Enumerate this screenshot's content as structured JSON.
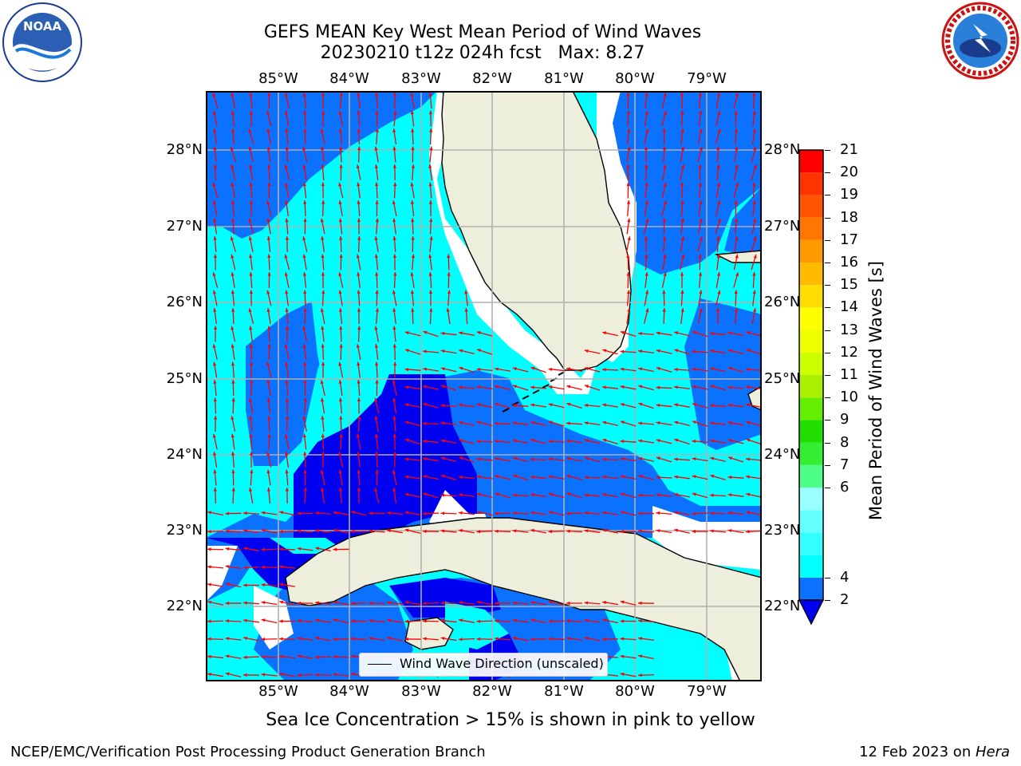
{
  "header": {
    "title_line1": "GEFS MEAN Key West Mean Period of Wind Waves",
    "title_line2": "20230210 t12z 024h fcst   Max: 8.27"
  },
  "logos": {
    "noaa_text": "NOAA",
    "noaa_ring_text": "NATIONAL OCEANIC AND ATMOSPHERIC ADMINISTRATION · U.S. DEPARTMENT OF COMMERCE",
    "nws_ring_text": "NATIONAL WEATHER SERVICE"
  },
  "map": {
    "lon_labels": [
      "85°W",
      "84°W",
      "83°W",
      "82°W",
      "81°W",
      "80°W",
      "79°W"
    ],
    "lat_labels": [
      "28°N",
      "27°N",
      "26°N",
      "25°N",
      "24°N",
      "23°N",
      "22°N"
    ],
    "legend": "Wind Wave Direction (unscaled)",
    "colors": {
      "land": "#eeeedd",
      "ocean_2_4": "#0a72ff",
      "ocean_4_6": "#00ffff",
      "ocean_lt_2": "#0000f0",
      "arrows": "#ff0000",
      "coast": "#000000",
      "grid": "#b0b0b0"
    }
  },
  "colorbar": {
    "label": "Mean Period of Wind Waves [s]",
    "ticks": [
      "21",
      "20",
      "19",
      "18",
      "17",
      "16",
      "15",
      "14",
      "13",
      "12",
      "11",
      "10",
      "9",
      "8",
      "7",
      "6",
      "4",
      "2"
    ],
    "colors_bottom_to_top": [
      "#0a72ff",
      "#00ffff",
      "#33ffff",
      "#66ffff",
      "#99ffff",
      "#4dff88",
      "#33ee33",
      "#22dd00",
      "#66ee00",
      "#aaee00",
      "#ccff00",
      "#eeff00",
      "#ffff00",
      "#ffdd00",
      "#ffbb00",
      "#ff9900",
      "#ff7700",
      "#ff5500",
      "#ff3300",
      "#ff0000"
    ],
    "extend_color": "#0000f0"
  },
  "notes": {
    "ice": "Sea Ice Concentration > 15% is shown in pink to yellow",
    "footer_left": "NCEP/EMC/Verification Post Processing Product Generation Branch",
    "footer_date": "12 Feb 2023 on ",
    "footer_machine": "Hera"
  }
}
